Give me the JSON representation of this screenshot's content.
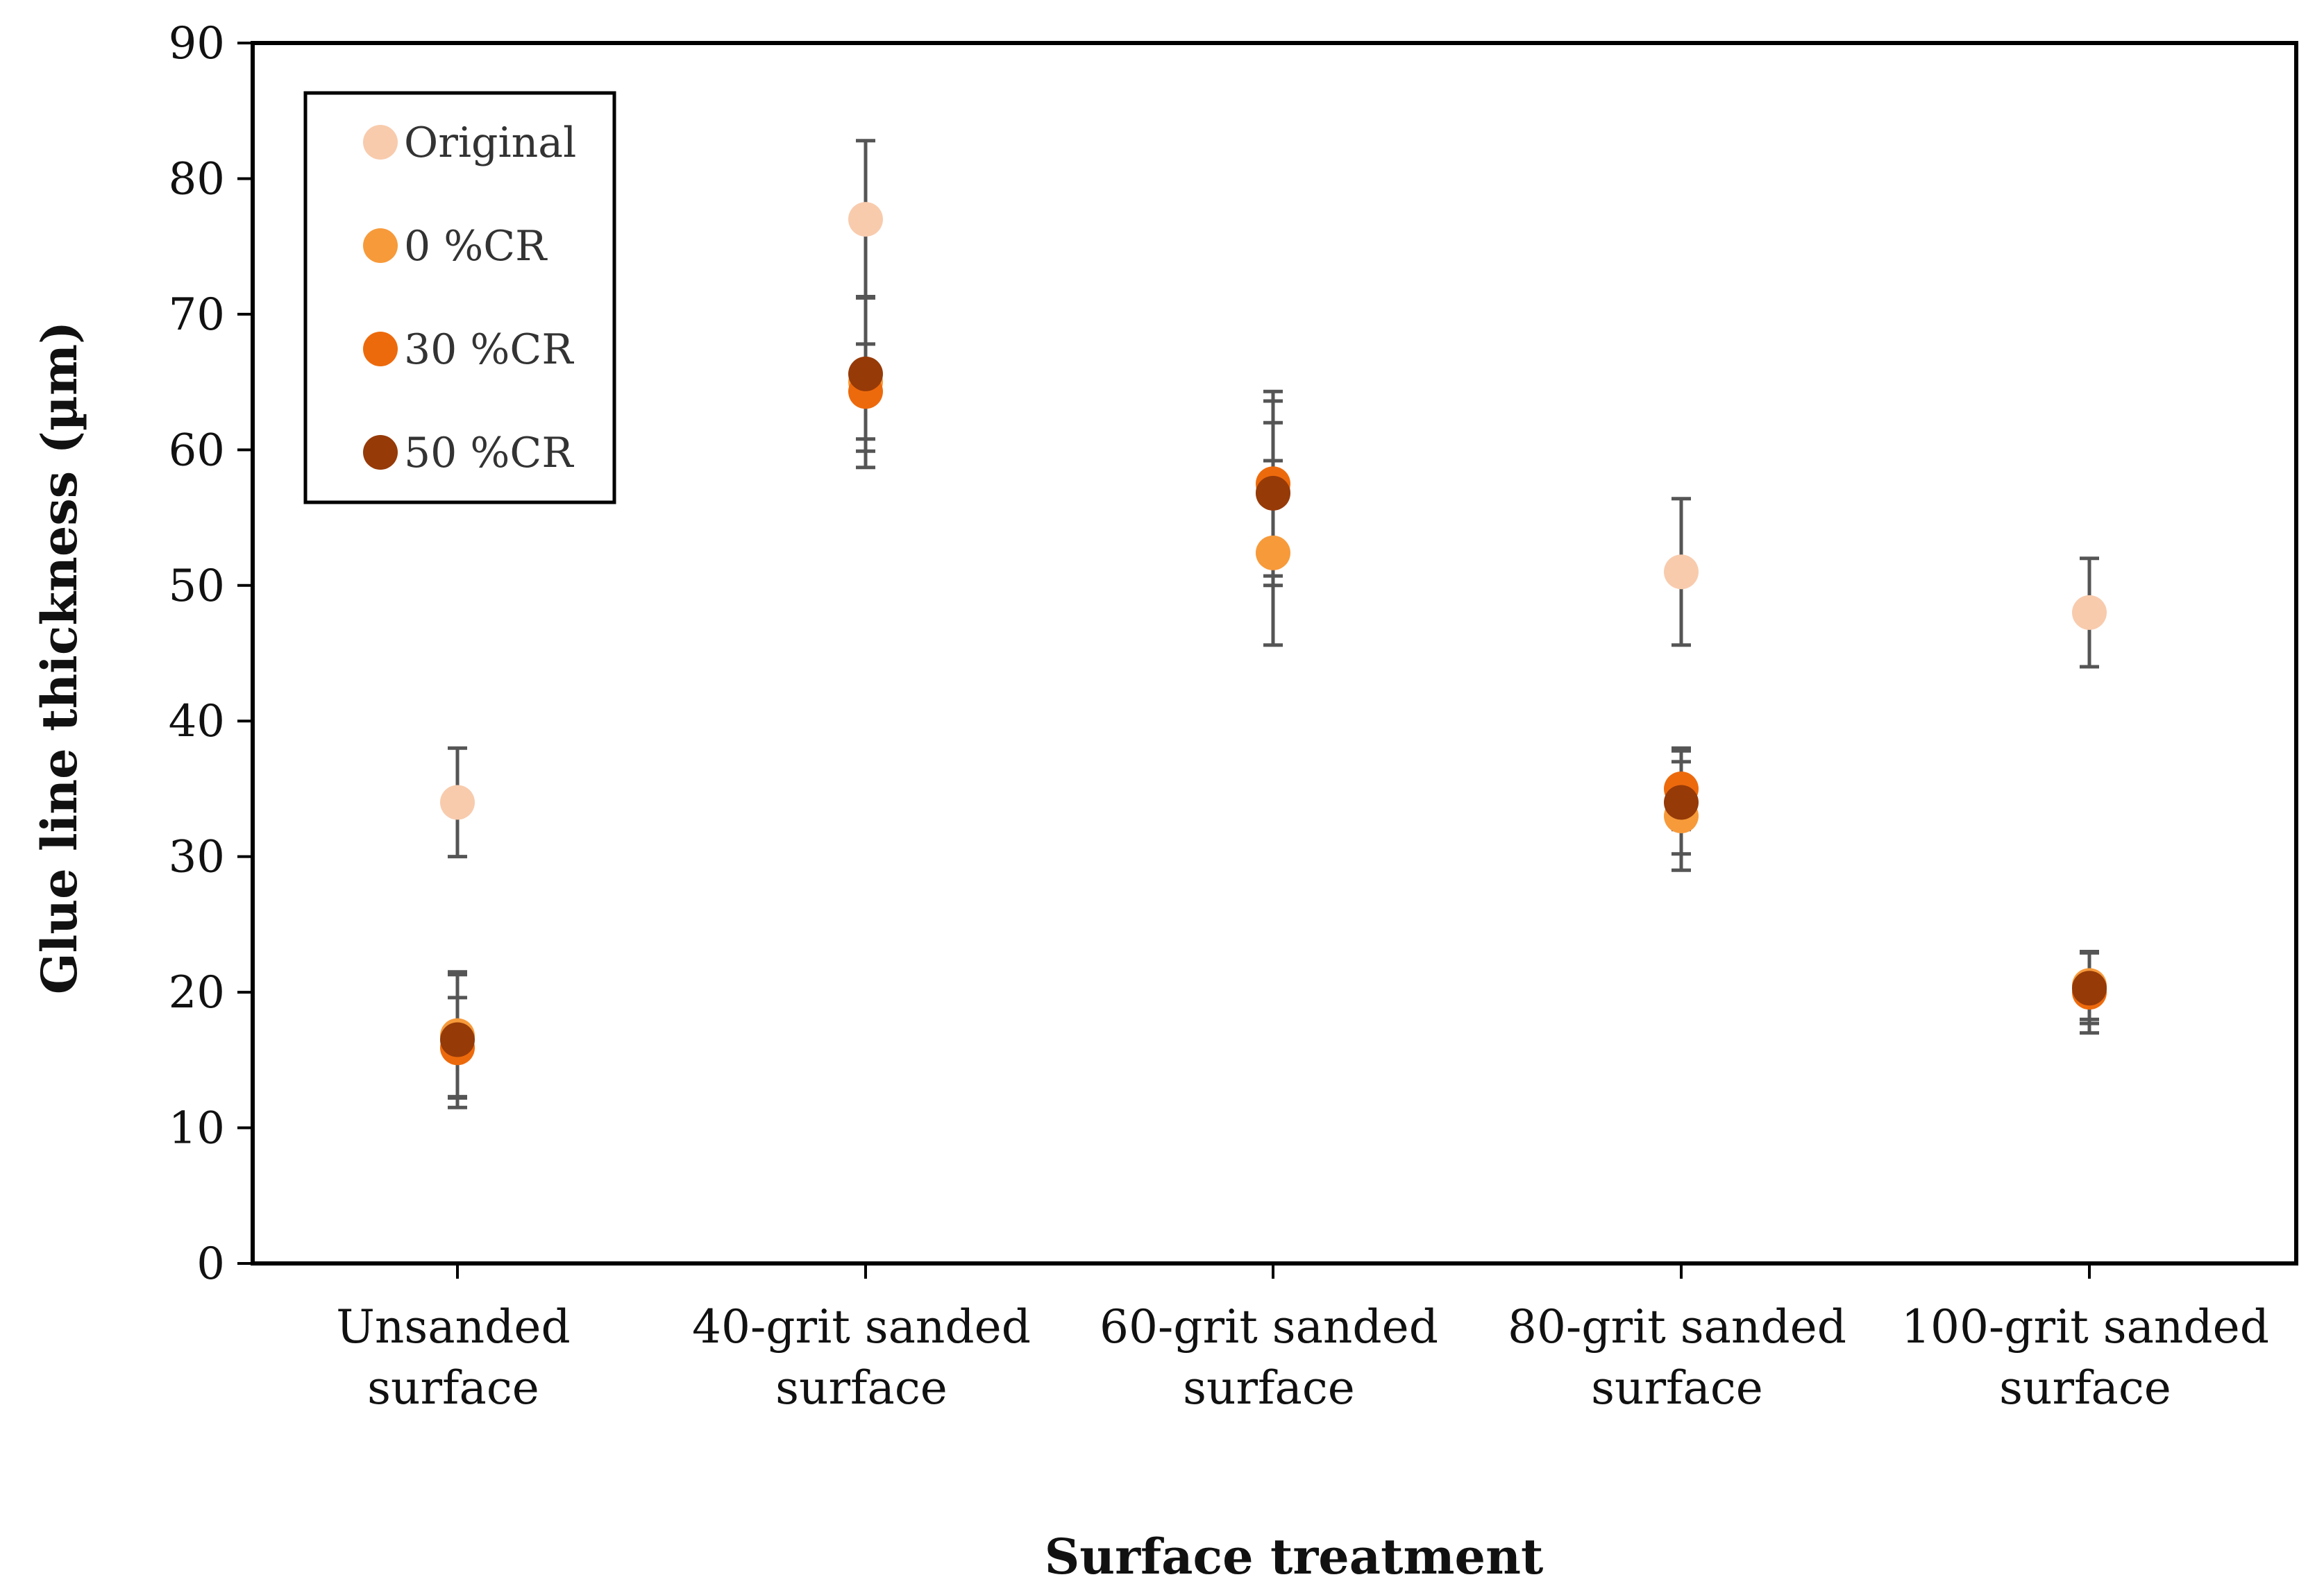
{
  "chart_data": {
    "type": "scatter",
    "title": "",
    "xlabel": "Surface treatment",
    "ylabel": "Glue line thickness (µm)",
    "ylim": [
      0,
      90
    ],
    "yticks": [
      0,
      10,
      20,
      30,
      40,
      50,
      60,
      70,
      80,
      90
    ],
    "categories": [
      [
        "Unsanded",
        "surface"
      ],
      [
        "40-grit sanded",
        "surface"
      ],
      [
        "60-grit sanded",
        "surface"
      ],
      [
        "80-grit sanded",
        "surface"
      ],
      [
        "100-grit sanded",
        "surface"
      ]
    ],
    "grid": false,
    "legend_position": "top-left",
    "series": [
      {
        "name": "Original",
        "color": "#F8CBAD",
        "values": [
          34,
          77,
          57,
          51,
          48
        ],
        "error": [
          4,
          5.8,
          5,
          5.4,
          4
        ]
      },
      {
        "name": "0 %CR",
        "color": "#F79A3A",
        "values": [
          16.8,
          65,
          52.4,
          33,
          20.5
        ],
        "error": [
          4.5,
          6.3,
          6.8,
          4,
          2.5
        ]
      },
      {
        "name": "30 %CR",
        "color": "#ED6A0C",
        "values": [
          15.9,
          64.3,
          57.5,
          35,
          20
        ],
        "error": [
          3.7,
          3.5,
          6.8,
          3,
          3
        ]
      },
      {
        "name": "50 %CR",
        "color": "#963A08",
        "values": [
          16.5,
          65.6,
          56.8,
          34,
          20.3
        ],
        "error": [
          5,
          5.7,
          6.8,
          3.8,
          2.6
        ]
      }
    ]
  }
}
